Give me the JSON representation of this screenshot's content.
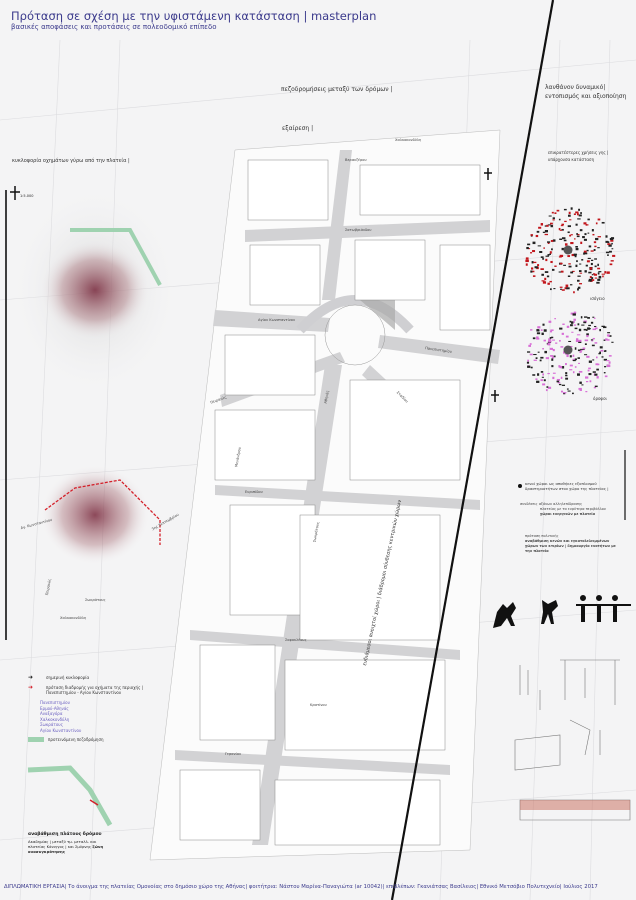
{
  "header": {
    "title": "Πρόταση σε σχέση με την υφιστάμενη κατάσταση |  masterplan",
    "subtitle": "βασικές αποφάσεις και προτάσεις σε πολεοδομικό επίπεδο"
  },
  "center": {
    "label_pedestrian": "πεζοδρομήσεις μεταξύ των δρόμων |",
    "label_exception": "εξαίρεση |",
    "vertical_caption": "ενδιάμεσοι ανοιχτοί χώροι | διάδρομοι σύνδεσης κεντρικών χώρων",
    "streets": [
      "Αγίου Κωνσταντίνου",
      "Πανεπιστημίου",
      "Πειραιώς",
      "Αθηνάς",
      "Σταδίου",
      "Σωκράτους",
      "Ευριπίδου",
      "Σοφοκλέους",
      "Κρατίνου",
      "Γερανίου",
      "Μενάνδρου",
      "Βερανζέρου",
      "Σατωβριάνδου",
      "Χαλκοκονδύλη"
    ]
  },
  "left": {
    "section_title": "κυκλοφορία οχημάτων γύρω από την πλατεία |",
    "scale": "1:5.000",
    "legend": [
      {
        "icon": "black-arrow-icon",
        "text": "σημερινή κυκλοφορία"
      },
      {
        "icon": "red-arrow-icon",
        "text": "πρόταση διαδρομής για οχήματα της περιοχής | Πανεπιστημίου - Αγίου Κωνσταντίνου"
      }
    ],
    "purple_list": [
      "Πανεπιστημίου",
      "Ερμού-Αθηνάς",
      "Αναξαγόρα",
      "Χαλκοκονδύλη",
      "Σωκράτους",
      "Αγίου Κωνσταντίνου"
    ],
    "green_legend": "προτεινόμενη πεζοδρόμηση",
    "bottom_title": "αναβάθμιση πλάτους δρόμου",
    "bottom_text": "Ακαδημίας | μεταξύ τμ. μεταλλ. και πλατείας Κάνιγγος | και Σμύρνης",
    "bottom_bold": "ζώνη ανασυγκρότησης",
    "street_labels": [
      "Αγ. Κωνσταντίνου",
      "Πειραιώς",
      "Σωκράτους",
      "Χαλκοκονδύλη",
      "3ης Σεπτεμβρίου"
    ]
  },
  "right": {
    "section_title_1": "λανθάνον δυναμικό|",
    "section_title_2": "εντοπισμός και αξιοποίηση",
    "uses_title_1": "επικρατέστερες χρήσεις γης |",
    "uses_title_2": "υπάρχουσα κατάσταση",
    "map1_caption": "ισόγειο",
    "map2_caption": "όροφοι",
    "map1_color": "#c2151b",
    "map2_color": "#d86fd6",
    "dot_legend": "κενοί χώροι ως αποθήκες εξοπλισμού δραστηριοτήτων στον χώρο της πλατείας |",
    "text2_1": "συνδέσεις αξόνων αλληλεπίδρασης",
    "text2_2": "πλατείας με τα ευρύτερα περιβάλλον",
    "text2_3": "χώροι ενεργειών με πλατεία",
    "text3_1": "πρόταση πολιτικής",
    "text3_2": "αναβάθμιση κενών και εγκαταλελειμμένων χώρων των κτιρίων | δημιουργία ενοτήτων με την πλατεία"
  },
  "footer": {
    "text": "ΔΙΠΛΩΜΑΤΙΚΗ ΕΡΓΑΣΙΑ| Το άνοιγμα της πλατείας Ομονοίας στο δημόσιο χώρο της Αθήνας| φοιτήτρια: Νάστου Μαρίνα-Παναγιώτα (ar 10042)| επιβλέπων: Γκανιάτσας Βασίλειος| Εθνικό Μετσόβιο Πολυτεχνείο| Ιούλιος 2017"
  },
  "colors": {
    "accent": "#3b3a8c",
    "route_red": "#d4202a",
    "green_path": "#9fd2b0",
    "blur": "#8a3a4c"
  }
}
